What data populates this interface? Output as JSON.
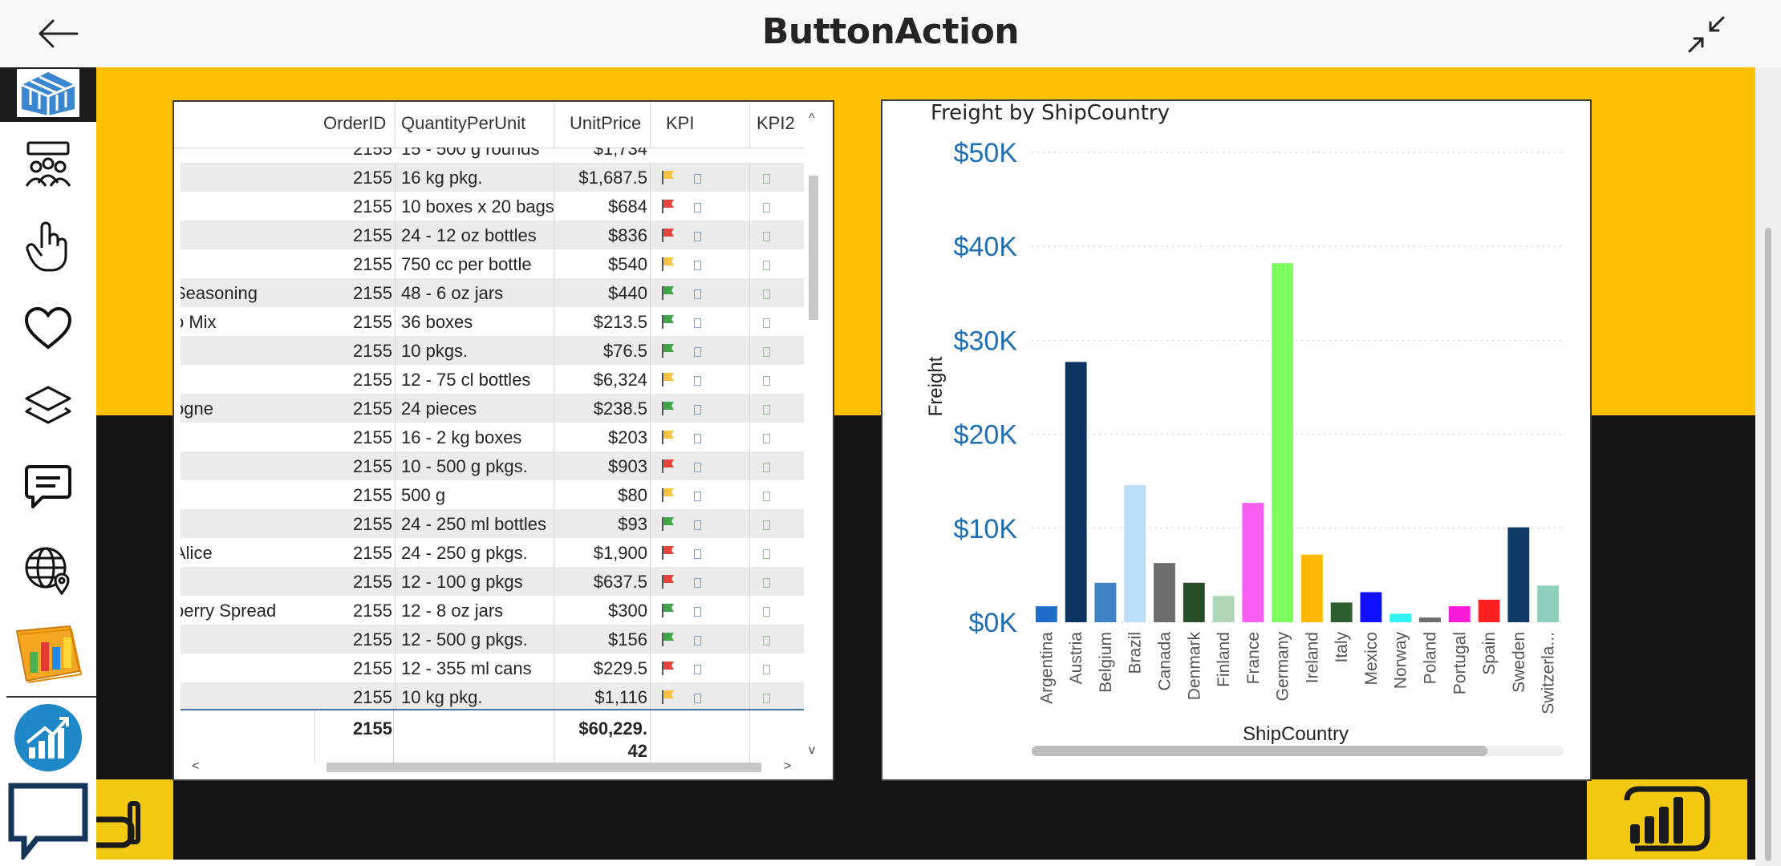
{
  "header": {
    "title": "ButtonAction",
    "back_icon": "back-arrow-icon",
    "collapse_icon": "collapse-arrows-icon"
  },
  "sidebar": {
    "items": [
      {
        "icon": "cube-grid-icon",
        "active": true
      },
      {
        "icon": "meeting-group-icon"
      },
      {
        "icon": "hand-pointer-icon"
      },
      {
        "icon": "heart-icon"
      },
      {
        "icon": "layers-icon"
      },
      {
        "icon": "chat-bubble-icon"
      },
      {
        "icon": "globe-location-icon"
      },
      {
        "icon": "chart-book-icon"
      },
      {
        "icon": "growth-chart-icon"
      },
      {
        "icon": "comment-icon"
      }
    ]
  },
  "colors": {
    "canvas_yellow": "#ffc000",
    "canvas_black": "#141414",
    "pbi_yellow": "#f2c811"
  },
  "table": {
    "columns": [
      "OrderID",
      "QuantityPerUnit",
      "UnitPrice",
      "KPI",
      "KPI2"
    ],
    "partial_top_row": {
      "order_id": "2155",
      "qty": "15 - 500 g rounds",
      "price": "$1,734"
    },
    "rows": [
      {
        "name": "",
        "order_id": "2155",
        "qty": "16 kg pkg.",
        "price": "$1,687.5",
        "flag": "yellow"
      },
      {
        "name": "",
        "order_id": "2155",
        "qty": "10 boxes x 20 bags",
        "price": "$684",
        "flag": "red"
      },
      {
        "name": "",
        "order_id": "2155",
        "qty": "24 - 12 oz bottles",
        "price": "$836",
        "flag": "red"
      },
      {
        "name": "",
        "order_id": "2155",
        "qty": "750 cc per bottle",
        "price": "$540",
        "flag": "yellow"
      },
      {
        "name": " Seasoning",
        "order_id": "2155",
        "qty": "48 - 6 oz jars",
        "price": "$440",
        "flag": "green"
      },
      {
        "name": "o Mix",
        "order_id": "2155",
        "qty": "36 boxes",
        "price": "$213.5",
        "flag": "green"
      },
      {
        "name": "",
        "order_id": "2155",
        "qty": "10 pkgs.",
        "price": "$76.5",
        "flag": "green"
      },
      {
        "name": "",
        "order_id": "2155",
        "qty": "12 - 75 cl bottles",
        "price": "$6,324",
        "flag": "yellow"
      },
      {
        "name": "ogne",
        "order_id": "2155",
        "qty": "24 pieces",
        "price": "$238.5",
        "flag": "green"
      },
      {
        "name": "",
        "order_id": "2155",
        "qty": "16 - 2 kg boxes",
        "price": "$203",
        "flag": "yellow"
      },
      {
        "name": "",
        "order_id": "2155",
        "qty": "10 - 500 g pkgs.",
        "price": "$903",
        "flag": "red"
      },
      {
        "name": "",
        "order_id": "2155",
        "qty": "500 g",
        "price": "$80",
        "flag": "yellow"
      },
      {
        "name": "",
        "order_id": "2155",
        "qty": "24 - 250 ml bottles",
        "price": "$93",
        "flag": "green"
      },
      {
        "name": "Alice",
        "order_id": "2155",
        "qty": "24 - 250 g pkgs.",
        "price": "$1,900",
        "flag": "red"
      },
      {
        "name": "",
        "order_id": "2155",
        "qty": "12 - 100 g pkgs",
        "price": "$637.5",
        "flag": "red"
      },
      {
        "name": "berry Spread",
        "order_id": "2155",
        "qty": "12 - 8 oz jars",
        "price": "$300",
        "flag": "green"
      },
      {
        "name": "",
        "order_id": "2155",
        "qty": "12 - 500 g pkgs.",
        "price": "$156",
        "flag": "green"
      },
      {
        "name": "",
        "order_id": "2155",
        "qty": "12 - 355 ml cans",
        "price": "$229.5",
        "flag": "red"
      },
      {
        "name": "",
        "order_id": "2155",
        "qty": "10 kg pkg.",
        "price": "$1,116",
        "flag": "yellow"
      }
    ],
    "total": {
      "order_id": "2155",
      "price_line1": "$60,229.",
      "price_line2": "42"
    },
    "scroll_up_glyph": "^",
    "scroll_down_glyph": "v",
    "scroll_left_glyph": "<",
    "scroll_right_glyph": ">"
  },
  "chart_data": {
    "type": "bar",
    "title": "Freight by ShipCountry",
    "xlabel": "ShipCountry",
    "ylabel": "Freight",
    "ylim": [
      0,
      50000
    ],
    "yticks": [
      "$0K",
      "$10K",
      "$20K",
      "$30K",
      "$40K",
      "$50K"
    ],
    "categories": [
      "Argentina",
      "Austria",
      "Belgium",
      "Brazil",
      "Canada",
      "Denmark",
      "Finland",
      "France",
      "Germany",
      "Ireland",
      "Italy",
      "Mexico",
      "Norway",
      "Poland",
      "Portugal",
      "Spain",
      "Sweden",
      "Switzerla..."
    ],
    "values": [
      1700,
      27700,
      4200,
      14600,
      6300,
      4200,
      2800,
      12700,
      38200,
      7200,
      2100,
      3200,
      900,
      500,
      1700,
      2400,
      10100,
      3900
    ],
    "colors": [
      "#1f6fc8",
      "#0d3561",
      "#3f84c2",
      "#bcdef7",
      "#6d6d6d",
      "#264d26",
      "#aed6b4",
      "#f75ef2",
      "#7dff5e",
      "#ffb900",
      "#2f5f2f",
      "#1010ff",
      "#2ff2f2",
      "#6e6e6e",
      "#f81ad6",
      "#ff2020",
      "#0e3a66",
      "#8fd0bc"
    ],
    "grid": true
  }
}
